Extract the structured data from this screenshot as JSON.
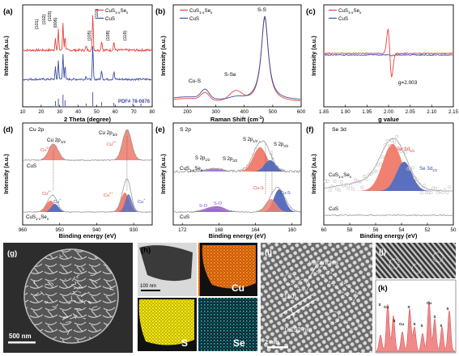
{
  "colors": {
    "red": "#e5443f",
    "blue": "#3b4da8",
    "gray": "#9a9a9a",
    "purple": "#8a3fd6",
    "fill_red": "#f08070",
    "fill_blue": "#5b6fbf",
    "fill_gray": "#c8c8c8",
    "orange": "#e8781a",
    "yellow": "#e8e01a",
    "cyan": "#1fb8c8",
    "pink": "#f08a8a"
  },
  "legend": {
    "cuss": "CuS",
    "cuss_suffix": "1-x",
    "se": "Se",
    "se_suffix": "x",
    "cus": "CuS"
  },
  "panels": {
    "a": {
      "tag": "(a)",
      "xlabel": "2 Theta (degree)",
      "ylabel": "Intensity (a.u.)",
      "pdf": "PDF# 78-0876",
      "peak_labels": [
        "(101)",
        "(102)",
        "(103)",
        "(006)",
        "(110)",
        "(105)",
        "(108)",
        "(116)"
      ]
    },
    "b": {
      "tag": "(b)",
      "xlabel": "Raman Shift (cm",
      "xlabel_sup": "-1",
      "xlabel_end": ")",
      "ylabel": "Intensity (a.u.)",
      "annotations": [
        "S-S",
        "Cu-S",
        "S-Se"
      ]
    },
    "c": {
      "tag": "(c)",
      "xlabel": "g value",
      "ylabel": "Intensity (a.u.)",
      "annotation": "g=2.003"
    },
    "d": {
      "tag": "(d)",
      "title": "Cu 2p",
      "xlabel": "Binding energy (eV)",
      "ylabel": "Intensity (a.u.)",
      "labels": [
        "Cu 2p",
        "1/2",
        "Cu 2p",
        "3/2",
        "Cu",
        "2+",
        "Cu",
        "2+",
        "CuS",
        "Cu",
        "2+",
        "Cu",
        "+",
        "Cu",
        "2+",
        "Cu",
        "+"
      ],
      "sample_cus": "CuS",
      "sample_cusse": "CuS"
    },
    "e": {
      "tag": "(e)",
      "title": "S 2p",
      "xlabel": "Binding energy (eV)",
      "ylabel": "Intensity (a.u.)",
      "labels": [
        "S 2p",
        "1/2",
        "S 2p",
        "3/2",
        "S 2p",
        "1/2",
        "S 2p",
        "3/2",
        "Cu-S",
        "S-O",
        "S-O",
        "Cu-S"
      ],
      "sample_cus": "CuS",
      "sample_cusse": "CuS"
    },
    "f": {
      "tag": "(f)",
      "title": "Se 3d",
      "xlabel": "Binding energy (eV)",
      "ylabel": "Intensity (a.u.)",
      "labels": [
        "Se 3d",
        "5/2",
        "Se 3d",
        "3/2"
      ],
      "sample_cus": "CuS",
      "sample_cusse": "CuS"
    },
    "g": {
      "tag": "(g)",
      "scale": "500 nm"
    },
    "h": {
      "tag": "(h)",
      "scale": "100 nm",
      "cu": "Cu",
      "s": "S",
      "se": "Se"
    },
    "i": {
      "tag": "(i)",
      "vacancies": "vacancies",
      "plane": "(110)",
      "dspacing": "0.191 nm",
      "scale": "2 nm"
    },
    "j": {
      "tag": "(j)"
    },
    "k": {
      "tag": "(k)",
      "atoms": [
        "S",
        "Cu",
        "S",
        "Cu",
        "S",
        "S",
        "S",
        "Cu",
        "S",
        "S",
        "S"
      ]
    }
  },
  "chart_data": [
    {
      "panel": "a",
      "type": "line",
      "title": "",
      "xlabel": "2 Theta (degree)",
      "ylabel": "Intensity (a.u.)",
      "xlim": [
        10,
        80
      ],
      "xticks": [
        10,
        20,
        30,
        40,
        50,
        60,
        70,
        80
      ],
      "peaks_x": [
        27.7,
        29.3,
        31.8,
        32.9,
        47.9,
        44.3,
        52.7,
        59.3
      ],
      "reference_sticks_x": [
        27.7,
        29.3,
        31.8,
        32.9,
        44.3,
        47.9,
        52.7,
        59.3,
        69.5,
        73.9
      ],
      "series": [
        {
          "name": "CuS1-xSex",
          "color": "#e5443f"
        },
        {
          "name": "CuS",
          "color": "#3b4da8"
        }
      ]
    },
    {
      "panel": "b",
      "type": "line",
      "title": "",
      "xlabel": "Raman Shift (cm-1)",
      "ylabel": "Intensity (a.u.)",
      "xlim": [
        150,
        600
      ],
      "xticks": [
        200,
        300,
        400,
        500,
        600
      ],
      "peaks_x": [
        262,
        370,
        472
      ],
      "series": [
        {
          "name": "CuS1-xSex",
          "color": "#e5443f"
        },
        {
          "name": "CuS",
          "color": "#3b4da8"
        }
      ]
    },
    {
      "panel": "c",
      "type": "line",
      "title": "",
      "xlabel": "g value",
      "ylabel": "Intensity (a.u.)",
      "xlim": [
        1.85,
        2.15
      ],
      "xticks": [
        1.85,
        1.9,
        1.95,
        2.0,
        2.05,
        2.1,
        2.15
      ],
      "signal_center": 2.003,
      "series": [
        {
          "name": "CuS1-xSex",
          "color": "#e5443f"
        },
        {
          "name": "CuS",
          "color": "#3b4da8"
        }
      ]
    },
    {
      "panel": "d",
      "type": "line",
      "title": "Cu 2p",
      "xlabel": "Binding energy (eV)",
      "ylabel": "Intensity (a.u.)",
      "xlim": [
        960,
        925
      ],
      "xticks": [
        960,
        950,
        940,
        930
      ],
      "peaks_x": [
        951.7,
        931.8
      ]
    },
    {
      "panel": "e",
      "type": "line",
      "title": "S 2p",
      "xlabel": "Binding energy (eV)",
      "ylabel": "Intensity (a.u.)",
      "xlim": [
        173,
        159
      ],
      "xticks": [
        172,
        168,
        164,
        160
      ],
      "peaks_x": [
        163.5,
        162.3,
        168.9,
        167.9,
        162.2,
        161.4
      ]
    },
    {
      "panel": "f",
      "type": "line",
      "title": "Se 3d",
      "xlabel": "Binding energy (eV)",
      "ylabel": "Intensity (a.u.)",
      "xlim": [
        60,
        50
      ],
      "xticks": [
        60,
        58,
        56,
        54,
        52,
        50
      ],
      "peaks_x": [
        54.7,
        53.8
      ]
    }
  ]
}
